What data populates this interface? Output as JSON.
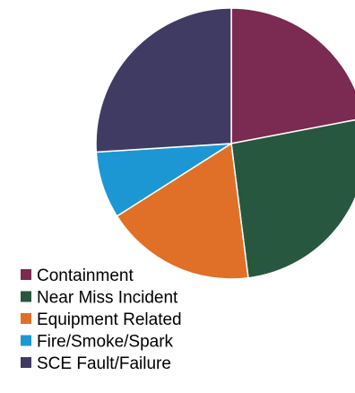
{
  "chart_data": {
    "type": "pie",
    "title": "",
    "categories": [
      "Containment",
      "Near Miss Incident",
      "Equipment Related",
      "Fire/Smoke/Spark",
      "SCE Fault/Failure"
    ],
    "values": [
      22,
      26,
      18,
      8,
      26
    ],
    "colors": [
      "#7b2a52",
      "#27573f",
      "#e07028",
      "#1d97d4",
      "#3f3b63"
    ],
    "legend_position": "bottom-left",
    "start": "top",
    "direction": "clockwise"
  }
}
